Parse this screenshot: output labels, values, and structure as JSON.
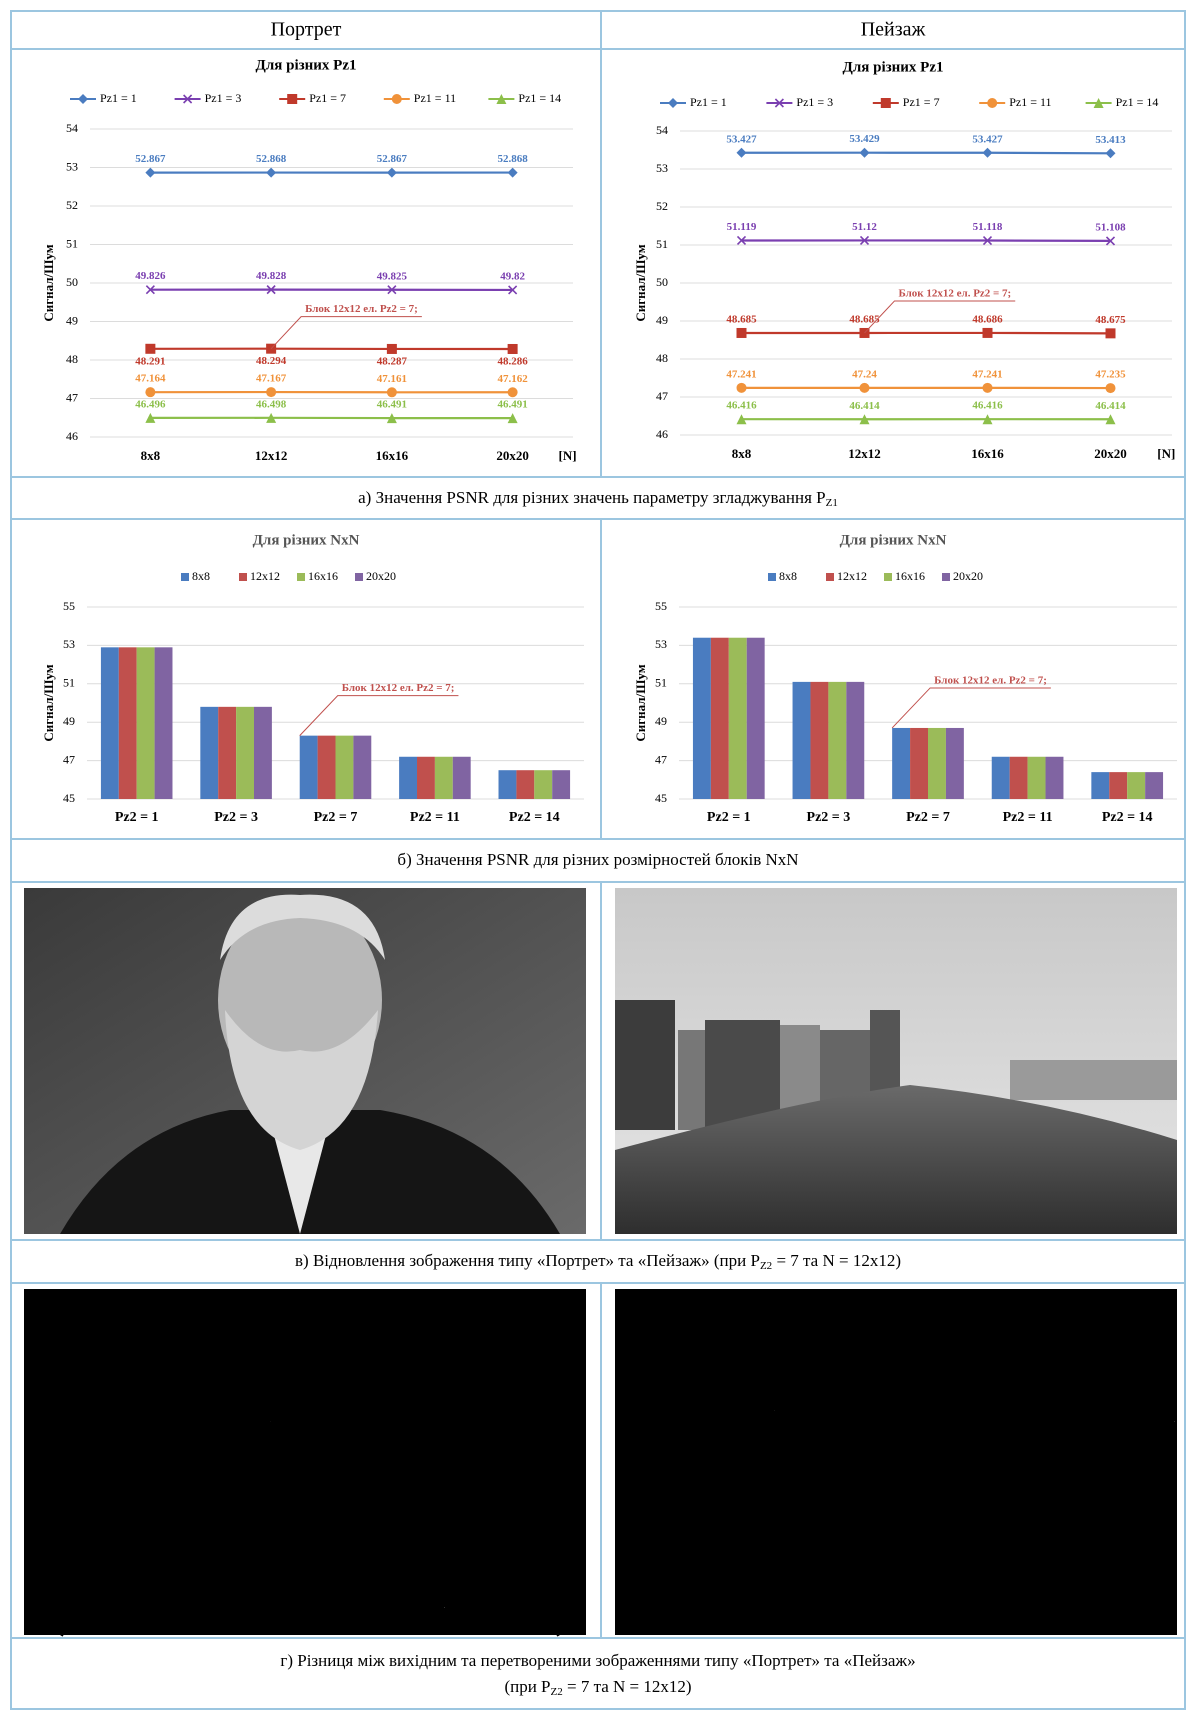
{
  "headers": [
    "Портрет",
    "Пейзаж"
  ],
  "captions": {
    "a": [
      "а) Значення PSNR для різних значень параметру згладжування P",
      "Z1"
    ],
    "b": [
      "б) Значення PSNR для різних розмірностей блоків NxN"
    ],
    "c": [
      "в) Відновлення зображення типу «Портрет» та «Пейзаж» (при P",
      "Z2",
      " = 7 та N = 12x12)"
    ],
    "d": [
      "г) Різниця між вихідним та перетвореними зображеннями типу «Портрет» та «Пейзаж»",
      "(при P",
      "Z2",
      " = 7 та N = 12x12)"
    ]
  },
  "chart_data": [
    {
      "type": "line",
      "title": "Для різних Pz1",
      "categories": [
        "8x8",
        "12x12",
        "16x16",
        "20x20"
      ],
      "x_label": "[N]",
      "y_label": "Сигнал/Шум",
      "ylim": [
        46,
        54
      ],
      "yticks": [
        46,
        47,
        48,
        49,
        50,
        51,
        52,
        53,
        54
      ],
      "grid": true,
      "annotation": "Блок 12x12 ел. Pz2 = 7;",
      "series": [
        {
          "name": "Pz1 = 1",
          "color": "#4a7cc0",
          "marker": "diamond",
          "values": [
            52.867,
            52.868,
            52.867,
            52.868
          ]
        },
        {
          "name": "Pz1 = 3",
          "color": "#7a3fb0",
          "marker": "x",
          "values": [
            49.826,
            49.828,
            49.825,
            49.82
          ]
        },
        {
          "name": "Pz1 = 7",
          "color": "#c0392b",
          "marker": "square",
          "values": [
            48.291,
            48.294,
            48.287,
            48.286
          ]
        },
        {
          "name": "Pz1 = 11",
          "color": "#f0923a",
          "marker": "circle",
          "values": [
            47.164,
            47.167,
            47.161,
            47.162
          ]
        },
        {
          "name": "Pz1 = 14",
          "color": "#8cbf4a",
          "marker": "triangle",
          "values": [
            46.496,
            46.498,
            46.491,
            46.491
          ]
        }
      ]
    },
    {
      "type": "line",
      "title": "Для різних Pz1",
      "categories": [
        "8x8",
        "12x12",
        "16x16",
        "20x20"
      ],
      "x_label": "[N]",
      "y_label": "Сигнал/Шум",
      "ylim": [
        46,
        54
      ],
      "yticks": [
        46,
        47,
        48,
        49,
        50,
        51,
        52,
        53,
        54
      ],
      "grid": true,
      "annotation": "Блок 12x12 ел. Pz2 = 7;",
      "series": [
        {
          "name": "Pz1 = 1",
          "color": "#4a7cc0",
          "marker": "diamond",
          "values": [
            53.427,
            53.429,
            53.427,
            53.413
          ]
        },
        {
          "name": "Pz1 = 3",
          "color": "#7a3fb0",
          "marker": "x",
          "values": [
            51.119,
            51.12,
            51.118,
            51.108
          ]
        },
        {
          "name": "Pz1 = 7",
          "color": "#c0392b",
          "marker": "square",
          "values": [
            48.685,
            48.685,
            48.686,
            48.675
          ]
        },
        {
          "name": "Pz1 = 11",
          "color": "#f0923a",
          "marker": "circle",
          "values": [
            47.241,
            47.24,
            47.241,
            47.235
          ]
        },
        {
          "name": "Pz1 = 14",
          "color": "#8cbf4a",
          "marker": "triangle",
          "values": [
            46.416,
            46.414,
            46.416,
            46.414
          ]
        }
      ]
    },
    {
      "type": "bar",
      "title": "Для різних NxN",
      "categories": [
        "Pz2 = 1",
        "Pz2 = 3",
        "Pz2 = 7",
        "Pz2 = 11",
        "Pz2 = 14"
      ],
      "y_label": "Сигнал/Шум",
      "ylim": [
        45,
        55
      ],
      "yticks": [
        45,
        47,
        49,
        51,
        53,
        55
      ],
      "grid": true,
      "annotation": "Блок 12x12 ел. Pz2 = 7;",
      "series": [
        {
          "name": "8x8",
          "color": "#4a7cc0",
          "values": [
            52.9,
            49.8,
            48.3,
            47.2,
            46.5
          ]
        },
        {
          "name": "12x12",
          "color": "#c0504d",
          "values": [
            52.9,
            49.8,
            48.3,
            47.2,
            46.5
          ]
        },
        {
          "name": "16x16",
          "color": "#9bbb59",
          "values": [
            52.9,
            49.8,
            48.3,
            47.2,
            46.5
          ]
        },
        {
          "name": "20x20",
          "color": "#8064a2",
          "values": [
            52.9,
            49.8,
            48.3,
            47.2,
            46.5
          ]
        }
      ]
    },
    {
      "type": "bar",
      "title": "Для різних NxN",
      "categories": [
        "Pz2 = 1",
        "Pz2 = 3",
        "Pz2 = 7",
        "Pz2 = 11",
        "Pz2 = 14"
      ],
      "y_label": "Сигнал/Шум",
      "ylim": [
        45,
        55
      ],
      "yticks": [
        45,
        47,
        49,
        51,
        53,
        55
      ],
      "grid": true,
      "annotation": "Блок 12x12 ел. Pz2 = 7;",
      "series": [
        {
          "name": "8x8",
          "color": "#4a7cc0",
          "values": [
            53.4,
            51.1,
            48.7,
            47.2,
            46.4
          ]
        },
        {
          "name": "12x12",
          "color": "#c0504d",
          "values": [
            53.4,
            51.1,
            48.7,
            47.2,
            46.4
          ]
        },
        {
          "name": "16x16",
          "color": "#9bbb59",
          "values": [
            53.4,
            51.1,
            48.7,
            47.2,
            46.4
          ]
        },
        {
          "name": "20x20",
          "color": "#8064a2",
          "values": [
            53.4,
            51.1,
            48.7,
            47.2,
            46.4
          ]
        }
      ]
    }
  ]
}
